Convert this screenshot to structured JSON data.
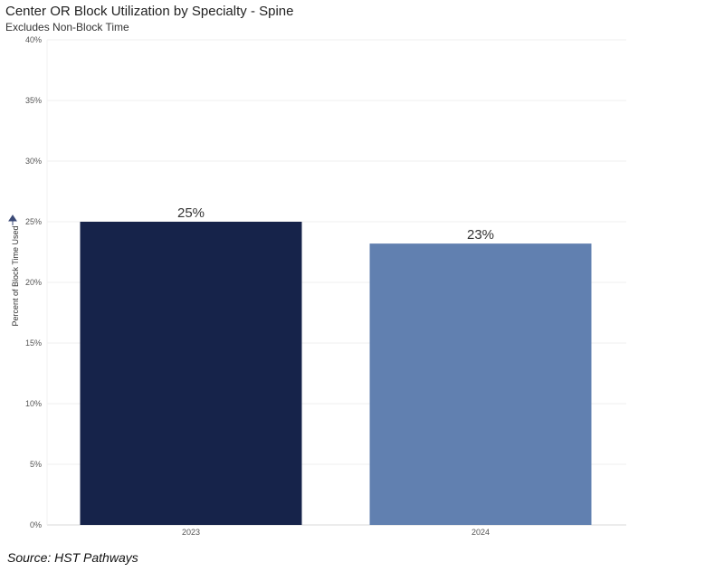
{
  "header": {
    "title": "Center OR Block Utilization by Specialty - Spine",
    "subtitle": "Excludes Non-Block Time"
  },
  "footer": {
    "source": "Source: HST Pathways"
  },
  "chart_data": {
    "type": "bar",
    "title": "Center OR Block Utilization by Specialty - Spine",
    "subtitle": "Excludes Non-Block Time",
    "xlabel": "",
    "ylabel": "Percent of Block Time Used",
    "categories": [
      "2023",
      "2024"
    ],
    "values": [
      25,
      23.2
    ],
    "data_labels": [
      "25%",
      "23%"
    ],
    "bar_colors": [
      "#16234a",
      "#6180b0"
    ],
    "ylim": [
      0,
      40
    ],
    "yticks": [
      0,
      5,
      10,
      15,
      20,
      25,
      30,
      35,
      40
    ],
    "ytick_labels": [
      "0%",
      "5%",
      "10%",
      "15%",
      "20%",
      "25%",
      "30%",
      "35%",
      "40%"
    ],
    "grid": true,
    "legend": "none"
  }
}
